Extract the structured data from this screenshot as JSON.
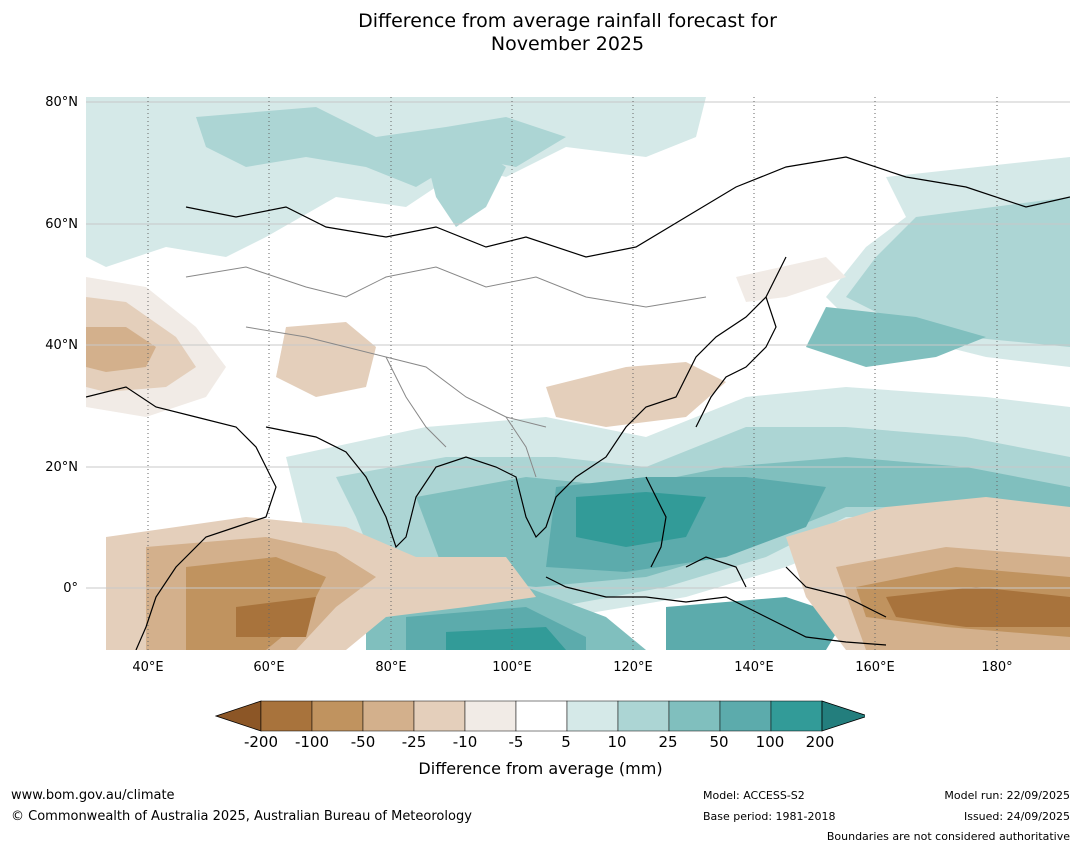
{
  "title_line1": "Difference from average rainfall forecast for",
  "title_line2": "November 2025",
  "map": {
    "lat_labels": [
      "80°N",
      "60°N",
      "40°N",
      "20°N",
      "0°"
    ],
    "lon_labels": [
      "40°E",
      "60°E",
      "80°E",
      "100°E",
      "120°E",
      "140°E",
      "160°E",
      "180°"
    ]
  },
  "legend": {
    "ticks": [
      "-200",
      "-100",
      "-50",
      "-25",
      "-10",
      "-5",
      "5",
      "10",
      "25",
      "50",
      "100",
      "200"
    ],
    "colors": [
      "#8c5626",
      "#a8733c",
      "#c0935f",
      "#d3b08c",
      "#e4cfbb",
      "#f1ebe6",
      "#ffffff",
      "#d5e9e8",
      "#acd5d4",
      "#80bfbe",
      "#5cabac",
      "#329b98",
      "#237e7d"
    ],
    "label": "Difference from average (mm)"
  },
  "footer": {
    "url": "www.bom.gov.au/climate",
    "copyright": "© Commonwealth of Australia 2025, Australian Bureau of Meteorology",
    "model": "Model: ACCESS-S2",
    "base_period": "Base period: 1981-2018",
    "model_run": "Model run: 22/09/2025",
    "issued": "Issued: 24/09/2025",
    "disclaimer": "Boundaries are not considered authoritative"
  }
}
